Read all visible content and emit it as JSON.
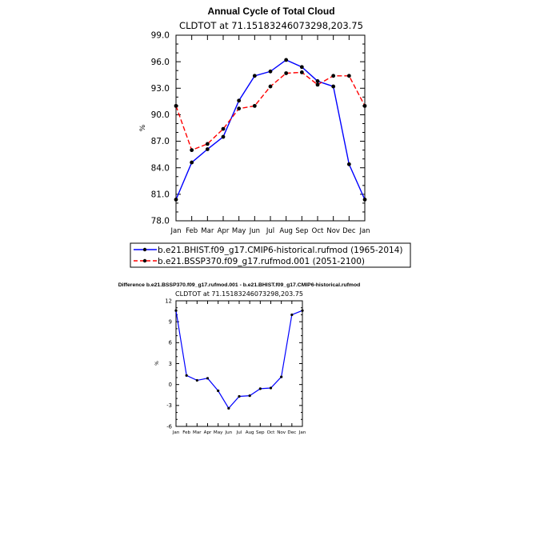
{
  "chart_data": [
    {
      "type": "line",
      "title": "Annual Cycle of Total Cloud",
      "subtitle": "CLDTOT at 71.15183246073298,203.75",
      "xlabel": "",
      "ylabel": "%",
      "categories": [
        "Jan",
        "Feb",
        "Mar",
        "Apr",
        "May",
        "Jun",
        "Jul",
        "Aug",
        "Sep",
        "Oct",
        "Nov",
        "Dec",
        "Jan"
      ],
      "ylim": [
        78.0,
        99.0
      ],
      "yticks": [
        "78.0",
        "81.0",
        "84.0",
        "87.0",
        "90.0",
        "93.0",
        "96.0",
        "99.0"
      ],
      "legend_position": "bottom",
      "series": [
        {
          "name": "b.e21.BHIST.f09_g17.CMIP6-historical.rufmod (1965-2014)",
          "color": "#0000ff",
          "style": "solid",
          "values": [
            80.4,
            84.6,
            86.1,
            87.5,
            91.6,
            94.4,
            94.9,
            96.2,
            95.4,
            93.8,
            93.2,
            84.4,
            80.4
          ]
        },
        {
          "name": "b.e21.BSSP370.f09_g17.rufmod.001 (2051-2100)",
          "color": "#ff0000",
          "style": "dashed",
          "values": [
            91.0,
            86.0,
            86.7,
            88.4,
            90.7,
            91.0,
            93.2,
            94.7,
            94.8,
            93.4,
            94.4,
            94.4,
            91.0
          ]
        }
      ]
    },
    {
      "type": "line",
      "title": "Difference b.e21.BSSP370.f09_g17.rufmod.001 - b.e21.BHIST.f09_g17.CMIP6-historical.rufmod",
      "subtitle": "CLDTOT at 71.15183246073298,203.75",
      "xlabel": "",
      "ylabel": "%",
      "categories": [
        "Jan",
        "Feb",
        "Mar",
        "Apr",
        "May",
        "Jun",
        "Jul",
        "Aug",
        "Sep",
        "Oct",
        "Nov",
        "Dec",
        "Jan"
      ],
      "ylim": [
        -6,
        12
      ],
      "yticks": [
        "-6",
        "-3",
        "0",
        "3",
        "6",
        "9",
        "12"
      ],
      "series": [
        {
          "name": "difference",
          "color": "#0000ff",
          "style": "solid",
          "values": [
            10.6,
            1.3,
            0.6,
            0.9,
            -0.9,
            -3.4,
            -1.7,
            -1.6,
            -0.6,
            -0.5,
            1.1,
            10.0,
            10.6
          ]
        }
      ]
    }
  ]
}
